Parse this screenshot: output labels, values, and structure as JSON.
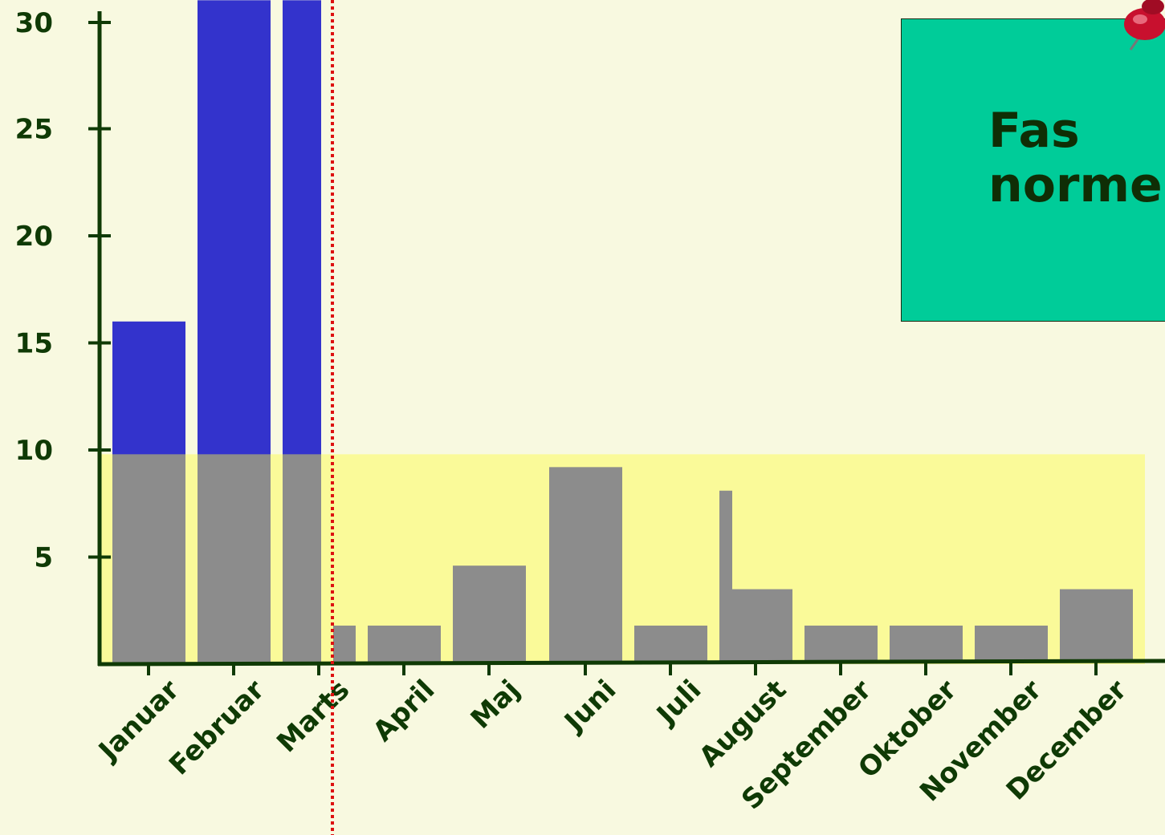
{
  "chart_data": {
    "type": "bar",
    "categories": [
      "Januar",
      "Februar",
      "Marts",
      "April",
      "Maj",
      "Juni",
      "Juli",
      "August",
      "September",
      "Oktober",
      "November",
      "December"
    ],
    "series": [
      {
        "values": [
          16,
          31,
          31,
          null,
          null,
          null,
          null,
          null,
          null,
          null,
          null,
          null
        ],
        "color": "#3333cc"
      },
      {
        "values": [
          9.8,
          9.8,
          9.8,
          1.8,
          4.6,
          9.2,
          1.8,
          3.5,
          1.8,
          1.8,
          1.8,
          3.5
        ],
        "color": "#8c8c8c"
      }
    ],
    "extra_marks": [
      {
        "category": "Marts",
        "value": 1.8,
        "note": "right part of Marts grey bar beyond the divider"
      },
      {
        "category": "August",
        "value": 8.1,
        "note": "narrow left spike"
      }
    ],
    "normal_band": {
      "from": 0,
      "to": 9.8,
      "color": "#fafa99"
    },
    "yticks": [
      5,
      10,
      15,
      20,
      25,
      30
    ],
    "ylim": [
      0,
      30.6
    ],
    "divider_color": "#dd1111",
    "axis_color": "#0f3a05",
    "title": "",
    "xlabel": "",
    "ylabel": ""
  },
  "note": {
    "text": "Fas\nnorme",
    "background": "#00cc99"
  }
}
